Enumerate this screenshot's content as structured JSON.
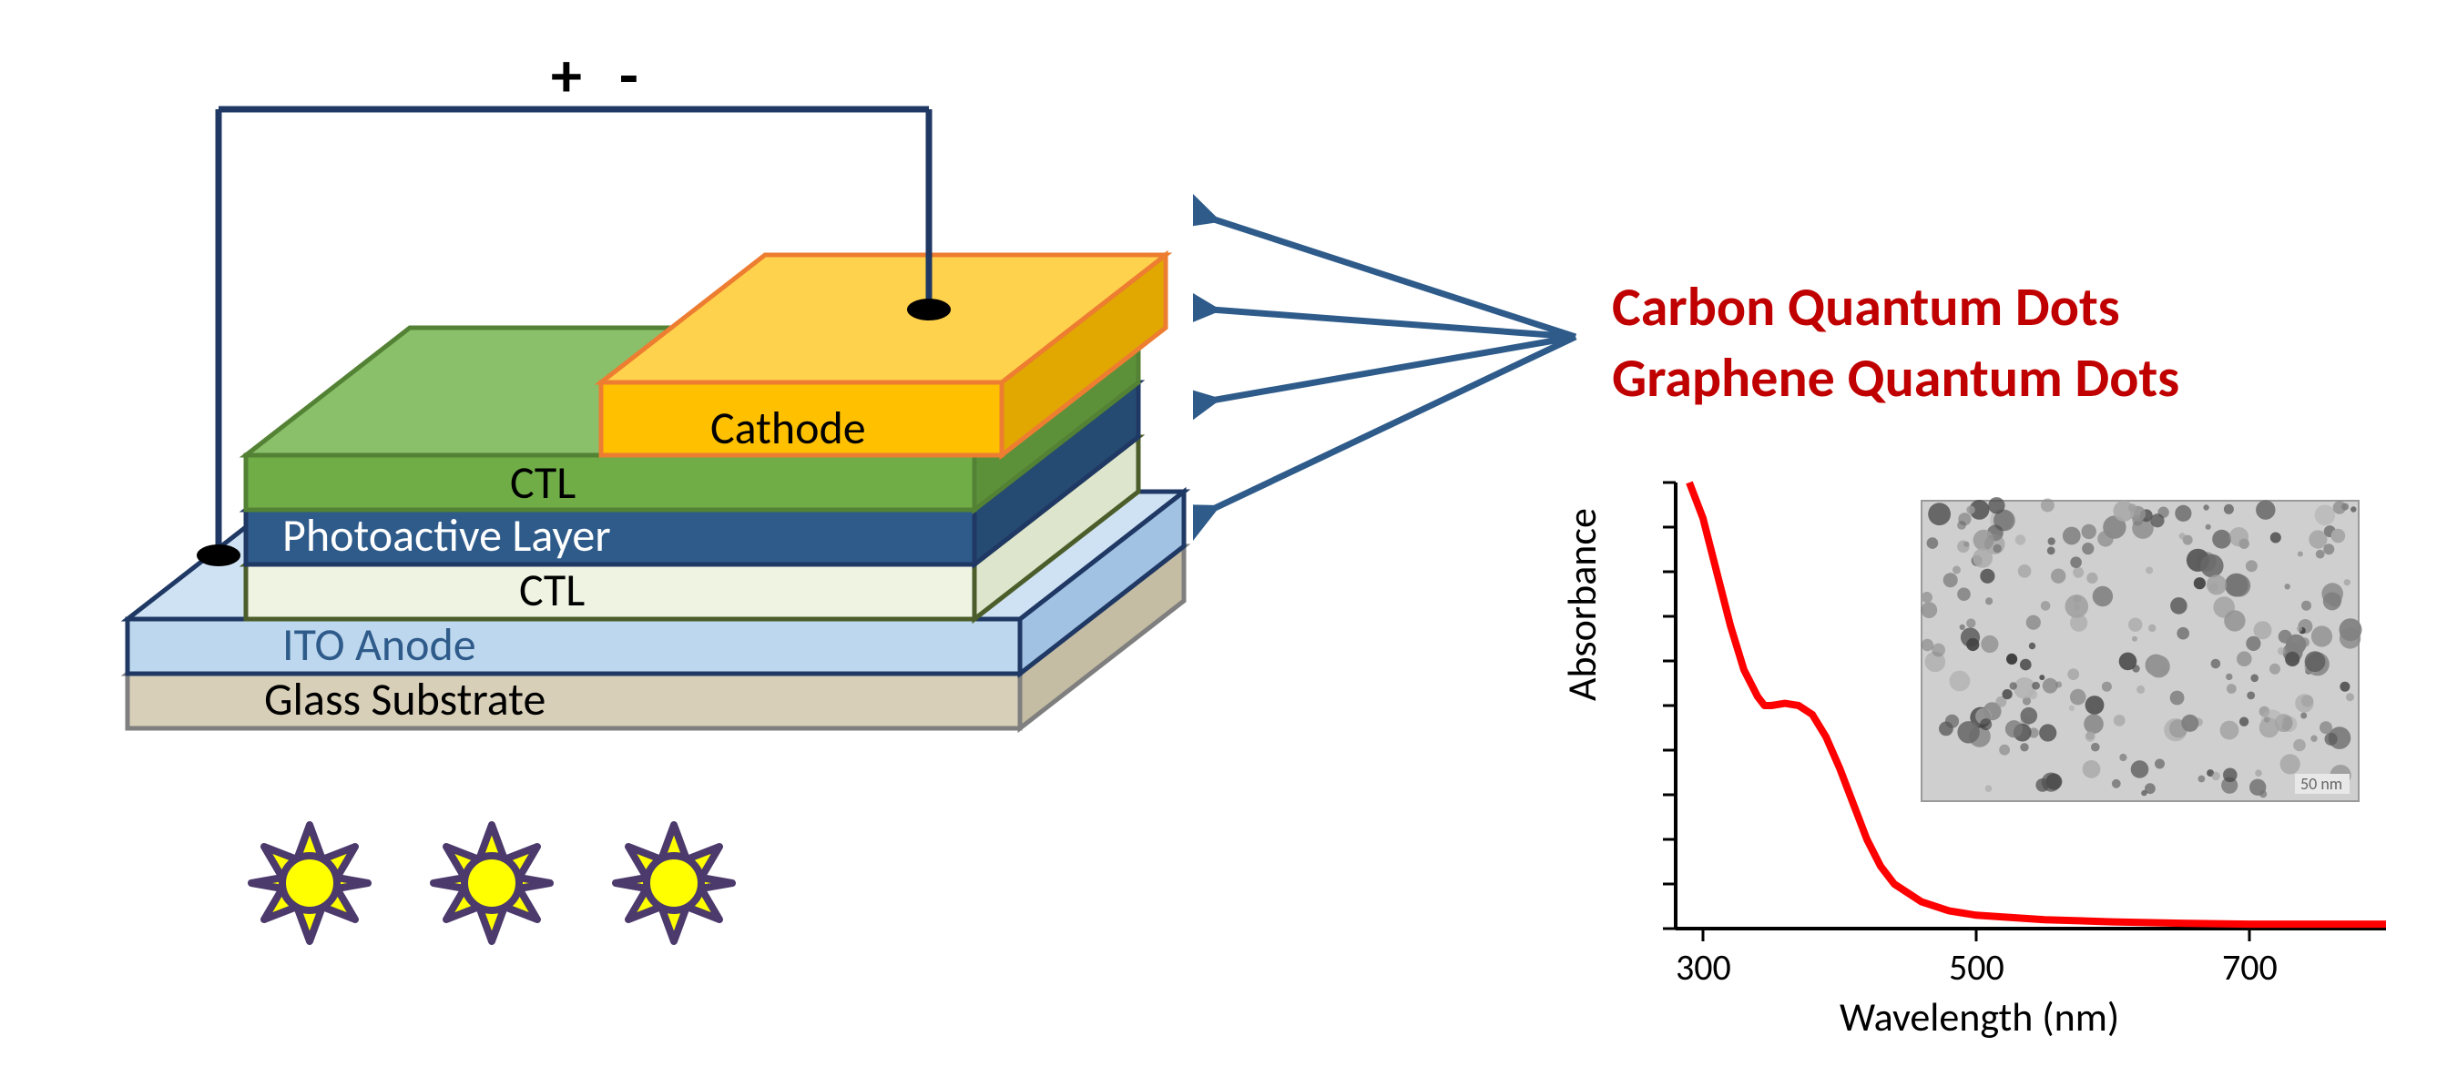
{
  "diagram": {
    "layers": {
      "cathode": {
        "label": "Cathode",
        "fill": "#ffc000",
        "stroke": "#ed7d31",
        "text_color": "#000000"
      },
      "ctl_top": {
        "label": "CTL",
        "fill": "#70ad47",
        "stroke": "#548235",
        "text_color": "#000000"
      },
      "active": {
        "label": "Photoactive Layer",
        "fill": "#2e5b8a",
        "stroke": "#1f3864",
        "text_color": "#ffffff"
      },
      "ctl_bot": {
        "label": "CTL",
        "fill": "#eef3e2",
        "stroke": "#4b5d2a",
        "text_color": "#000000"
      },
      "ito": {
        "label": "ITO Anode",
        "fill": "#bdd7ee",
        "stroke": "#1f3864",
        "text_color": "#2e5b8a"
      },
      "glass": {
        "label": "Glass Substrate",
        "fill": "#d8cfb8",
        "stroke": "#7f7f7f",
        "text_color": "#000000"
      }
    },
    "circuit": {
      "plus": "+",
      "minus": "-",
      "wire_color": "#1f3864",
      "terminal_color": "#000000"
    },
    "suns": {
      "count": 3,
      "fill": "#ffff00",
      "stroke": "#4b3a6b"
    }
  },
  "callout": {
    "title_line1": "Carbon Quantum Dots",
    "title_line2": "Graphene Quantum Dots",
    "arrow_color": "#2e5b8a"
  },
  "chart": {
    "type": "line",
    "xlabel": "Wavelength (nm)",
    "ylabel": "Absorbance",
    "xlim": [
      280,
      800
    ],
    "ylim": [
      0,
      1.0
    ],
    "xticks": [
      300,
      500,
      700
    ],
    "yticks_minor_count": 10,
    "line_color": "#ff0000",
    "line_width": 8,
    "axis_color": "#000000",
    "tick_color": "#000000",
    "background": "#ffffff",
    "data": [
      {
        "x": 290,
        "y": 1.0
      },
      {
        "x": 300,
        "y": 0.92
      },
      {
        "x": 310,
        "y": 0.8
      },
      {
        "x": 320,
        "y": 0.68
      },
      {
        "x": 330,
        "y": 0.58
      },
      {
        "x": 340,
        "y": 0.52
      },
      {
        "x": 345,
        "y": 0.5
      },
      {
        "x": 350,
        "y": 0.5
      },
      {
        "x": 360,
        "y": 0.505
      },
      {
        "x": 370,
        "y": 0.5
      },
      {
        "x": 380,
        "y": 0.48
      },
      {
        "x": 390,
        "y": 0.43
      },
      {
        "x": 400,
        "y": 0.36
      },
      {
        "x": 410,
        "y": 0.28
      },
      {
        "x": 420,
        "y": 0.2
      },
      {
        "x": 430,
        "y": 0.14
      },
      {
        "x": 440,
        "y": 0.1
      },
      {
        "x": 460,
        "y": 0.06
      },
      {
        "x": 480,
        "y": 0.04
      },
      {
        "x": 500,
        "y": 0.03
      },
      {
        "x": 550,
        "y": 0.02
      },
      {
        "x": 600,
        "y": 0.015
      },
      {
        "x": 650,
        "y": 0.012
      },
      {
        "x": 700,
        "y": 0.01
      },
      {
        "x": 750,
        "y": 0.01
      },
      {
        "x": 800,
        "y": 0.01
      }
    ],
    "inset_image": {
      "scale_bar": "50 nm"
    }
  },
  "label_fontsize": 50,
  "title_fontsize": 60,
  "axis_fontsize": 44,
  "tick_fontsize": 40
}
